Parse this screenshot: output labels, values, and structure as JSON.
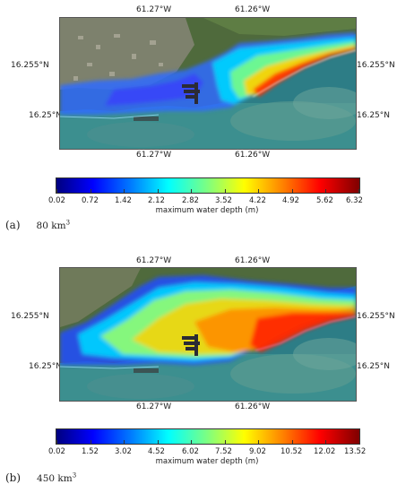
{
  "panels": [
    {
      "letter": "(a)",
      "caption_value": "80 km",
      "caption_exp": "3",
      "lon_labels": [
        "61.27°W",
        "61.26°W"
      ],
      "lat_labels": [
        "16.255°N",
        "16.25°N"
      ],
      "colorbar": {
        "title": "maximum water depth (m)",
        "ticks": [
          "0.02",
          "0.72",
          "1.42",
          "2.12",
          "2.82",
          "3.52",
          "4.22",
          "4.92",
          "5.62",
          "6.32"
        ]
      },
      "colormap": "jet"
    },
    {
      "letter": "(b)",
      "caption_value": "450 km",
      "caption_exp": "3",
      "lon_labels": [
        "61.27°W",
        "61.26°W"
      ],
      "lat_labels": [
        "16.255°N",
        "16.25°N"
      ],
      "colorbar": {
        "title": "maximum water depth (m)",
        "ticks": [
          "0.02",
          "1.52",
          "3.02",
          "4.52",
          "6.02",
          "7.52",
          "9.02",
          "10.52",
          "12.02",
          "13.52"
        ]
      },
      "colormap": "jet"
    }
  ]
}
